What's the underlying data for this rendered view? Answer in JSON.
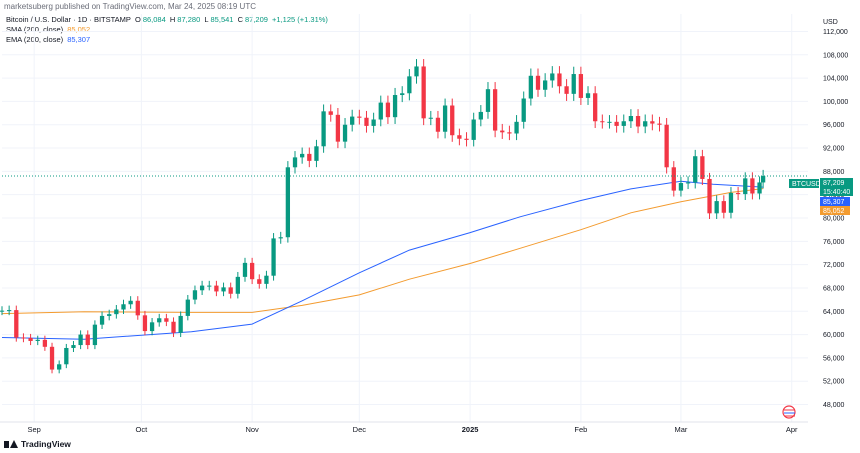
{
  "header": {
    "published": "marketsuberg published on TradingView.com, Mar 24, 2025 08:19 UTC"
  },
  "legend": {
    "symbol": "Bitcoin / U.S. Dollar · 1D · BITSTAMP",
    "o_label": "O",
    "o_value": "86,084",
    "h_label": "H",
    "h_value": "87,280",
    "l_label": "L",
    "l_value": "85,541",
    "c_label": "C",
    "c_value": "87,209",
    "change": "+1,125 (+1.31%)",
    "sma_label": "SMA (200, close)",
    "sma_value": "85,052",
    "ema_label": "EMA (200, close)",
    "ema_value": "85,307"
  },
  "price_tags": {
    "symbol": "BTCUSD",
    "price": "87,209",
    "countdown": "15:40:40",
    "ema": "85,307",
    "sma": "85,052"
  },
  "footer": {
    "brand": "TradingView"
  },
  "colors": {
    "up": "#089981",
    "down": "#f23645",
    "sma": "#f39b2f",
    "ema": "#2962ff",
    "grid": "#f0f3fa"
  },
  "chart_data": {
    "type": "candlestick",
    "currency": "USD",
    "y_ticks": [
      48000,
      52000,
      56000,
      60000,
      64000,
      68000,
      72000,
      76000,
      80000,
      84000,
      88000,
      92000,
      96000,
      100000,
      104000,
      108000,
      112000
    ],
    "y_tick_labels": [
      "48,000",
      "52,000",
      "56,000",
      "60,000",
      "64,000",
      "68,000",
      "72,000",
      "76,000",
      "80,000",
      "84,000",
      "88,000",
      "92,000",
      "96,000",
      "100,000",
      "104,000",
      "108,000",
      "112,000"
    ],
    "ylim": [
      45000,
      115000
    ],
    "x_labels": [
      {
        "label": "Sep",
        "date": "2024-09-01",
        "bold": false
      },
      {
        "label": "Oct",
        "date": "2024-10-01",
        "bold": false
      },
      {
        "label": "Nov",
        "date": "2024-11-01",
        "bold": false
      },
      {
        "label": "Dec",
        "date": "2024-12-01",
        "bold": false
      },
      {
        "label": "2025",
        "date": "2025-01-01",
        "bold": true
      },
      {
        "label": "Feb",
        "date": "2025-02-01",
        "bold": false
      },
      {
        "label": "Mar",
        "date": "2025-03-01",
        "bold": false
      },
      {
        "label": "Apr",
        "date": "2025-04-01",
        "bold": false
      }
    ],
    "x_range": [
      "2024-08-23",
      "2025-04-05"
    ],
    "last_close": 87209,
    "close_series": [
      [
        "2024-08-23",
        64100
      ],
      [
        "2024-08-25",
        64200
      ],
      [
        "2024-08-27",
        59500
      ],
      [
        "2024-08-29",
        59400
      ],
      [
        "2024-08-31",
        58900
      ],
      [
        "2024-09-02",
        59100
      ],
      [
        "2024-09-04",
        57900
      ],
      [
        "2024-09-06",
        54000
      ],
      [
        "2024-09-08",
        54900
      ],
      [
        "2024-09-10",
        57700
      ],
      [
        "2024-09-12",
        58200
      ],
      [
        "2024-09-14",
        60000
      ],
      [
        "2024-09-16",
        58200
      ],
      [
        "2024-09-18",
        61700
      ],
      [
        "2024-09-20",
        63200
      ],
      [
        "2024-09-22",
        63500
      ],
      [
        "2024-09-24",
        64300
      ],
      [
        "2024-09-26",
        65200
      ],
      [
        "2024-09-28",
        65800
      ],
      [
        "2024-09-30",
        63300
      ],
      [
        "2024-10-02",
        60600
      ],
      [
        "2024-10-04",
        62100
      ],
      [
        "2024-10-06",
        62800
      ],
      [
        "2024-10-08",
        62200
      ],
      [
        "2024-10-10",
        60300
      ],
      [
        "2024-10-12",
        63200
      ],
      [
        "2024-10-14",
        66000
      ],
      [
        "2024-10-16",
        67600
      ],
      [
        "2024-10-18",
        68400
      ],
      [
        "2024-10-20",
        68400
      ],
      [
        "2024-10-22",
        67400
      ],
      [
        "2024-10-24",
        68100
      ],
      [
        "2024-10-26",
        67000
      ],
      [
        "2024-10-28",
        69900
      ],
      [
        "2024-10-30",
        72300
      ],
      [
        "2024-11-01",
        69500
      ],
      [
        "2024-11-03",
        68700
      ],
      [
        "2024-11-05",
        70100
      ],
      [
        "2024-11-07",
        76500
      ],
      [
        "2024-11-09",
        76700
      ],
      [
        "2024-11-11",
        88700
      ],
      [
        "2024-11-13",
        90400
      ],
      [
        "2024-11-15",
        91000
      ],
      [
        "2024-11-17",
        89800
      ],
      [
        "2024-11-19",
        92300
      ],
      [
        "2024-11-21",
        98300
      ],
      [
        "2024-11-23",
        97700
      ],
      [
        "2024-11-25",
        93100
      ],
      [
        "2024-11-27",
        96000
      ],
      [
        "2024-11-29",
        97400
      ],
      [
        "2024-12-01",
        97200
      ],
      [
        "2024-12-03",
        95800
      ],
      [
        "2024-12-05",
        96900
      ],
      [
        "2024-12-07",
        99800
      ],
      [
        "2024-12-09",
        97300
      ],
      [
        "2024-12-11",
        101100
      ],
      [
        "2024-12-13",
        101400
      ],
      [
        "2024-12-15",
        104300
      ],
      [
        "2024-12-17",
        106000
      ],
      [
        "2024-12-19",
        97100
      ],
      [
        "2024-12-21",
        97200
      ],
      [
        "2024-12-23",
        94800
      ],
      [
        "2024-12-25",
        99300
      ],
      [
        "2024-12-27",
        94200
      ],
      [
        "2024-12-29",
        93600
      ],
      [
        "2024-12-31",
        93400
      ],
      [
        "2025-01-02",
        96900
      ],
      [
        "2025-01-04",
        98200
      ],
      [
        "2025-01-06",
        102100
      ],
      [
        "2025-01-08",
        95000
      ],
      [
        "2025-01-10",
        94700
      ],
      [
        "2025-01-12",
        94500
      ],
      [
        "2025-01-14",
        96500
      ],
      [
        "2025-01-16",
        100500
      ],
      [
        "2025-01-18",
        104400
      ],
      [
        "2025-01-20",
        102000
      ],
      [
        "2025-01-22",
        103600
      ],
      [
        "2025-01-24",
        104800
      ],
      [
        "2025-01-26",
        102600
      ],
      [
        "2025-01-28",
        101300
      ],
      [
        "2025-01-30",
        104700
      ],
      [
        "2025-02-01",
        100600
      ],
      [
        "2025-02-03",
        101400
      ],
      [
        "2025-02-05",
        96600
      ],
      [
        "2025-02-07",
        96500
      ],
      [
        "2025-02-09",
        96500
      ],
      [
        "2025-02-11",
        95800
      ],
      [
        "2025-02-13",
        96600
      ],
      [
        "2025-02-15",
        97500
      ],
      [
        "2025-02-17",
        95700
      ],
      [
        "2025-02-19",
        96600
      ],
      [
        "2025-02-21",
        96200
      ],
      [
        "2025-02-23",
        96000
      ],
      [
        "2025-02-25",
        88700
      ],
      [
        "2025-02-27",
        84700
      ],
      [
        "2025-03-01",
        86000
      ],
      [
        "2025-03-03",
        86100
      ],
      [
        "2025-03-05",
        90600
      ],
      [
        "2025-03-07",
        86700
      ],
      [
        "2025-03-09",
        80800
      ],
      [
        "2025-03-11",
        82900
      ],
      [
        "2025-03-13",
        80900
      ],
      [
        "2025-03-15",
        84300
      ],
      [
        "2025-03-17",
        84100
      ],
      [
        "2025-03-19",
        86800
      ],
      [
        "2025-03-21",
        84200
      ],
      [
        "2025-03-23",
        86100
      ],
      [
        "2025-03-24",
        87209
      ]
    ],
    "sma_200": [
      [
        "2024-08-23",
        63600
      ],
      [
        "2024-09-15",
        63900
      ],
      [
        "2024-10-15",
        63800
      ],
      [
        "2024-11-01",
        63800
      ],
      [
        "2024-11-15",
        65000
      ],
      [
        "2024-12-01",
        66800
      ],
      [
        "2024-12-15",
        69500
      ],
      [
        "2025-01-01",
        72200
      ],
      [
        "2025-01-15",
        74800
      ],
      [
        "2025-02-01",
        78000
      ],
      [
        "2025-02-15",
        80900
      ],
      [
        "2025-03-01",
        82800
      ],
      [
        "2025-03-15",
        84400
      ],
      [
        "2025-03-24",
        85052
      ]
    ],
    "ema_200": [
      [
        "2024-08-23",
        59500
      ],
      [
        "2024-09-15",
        59200
      ],
      [
        "2024-10-15",
        60500
      ],
      [
        "2024-11-01",
        61800
      ],
      [
        "2024-11-15",
        65800
      ],
      [
        "2024-12-01",
        70600
      ],
      [
        "2024-12-15",
        74500
      ],
      [
        "2025-01-01",
        77500
      ],
      [
        "2025-01-15",
        80200
      ],
      [
        "2025-02-01",
        83000
      ],
      [
        "2025-02-15",
        85000
      ],
      [
        "2025-03-01",
        86300
      ],
      [
        "2025-03-10",
        85800
      ],
      [
        "2025-03-24",
        85307
      ]
    ]
  }
}
